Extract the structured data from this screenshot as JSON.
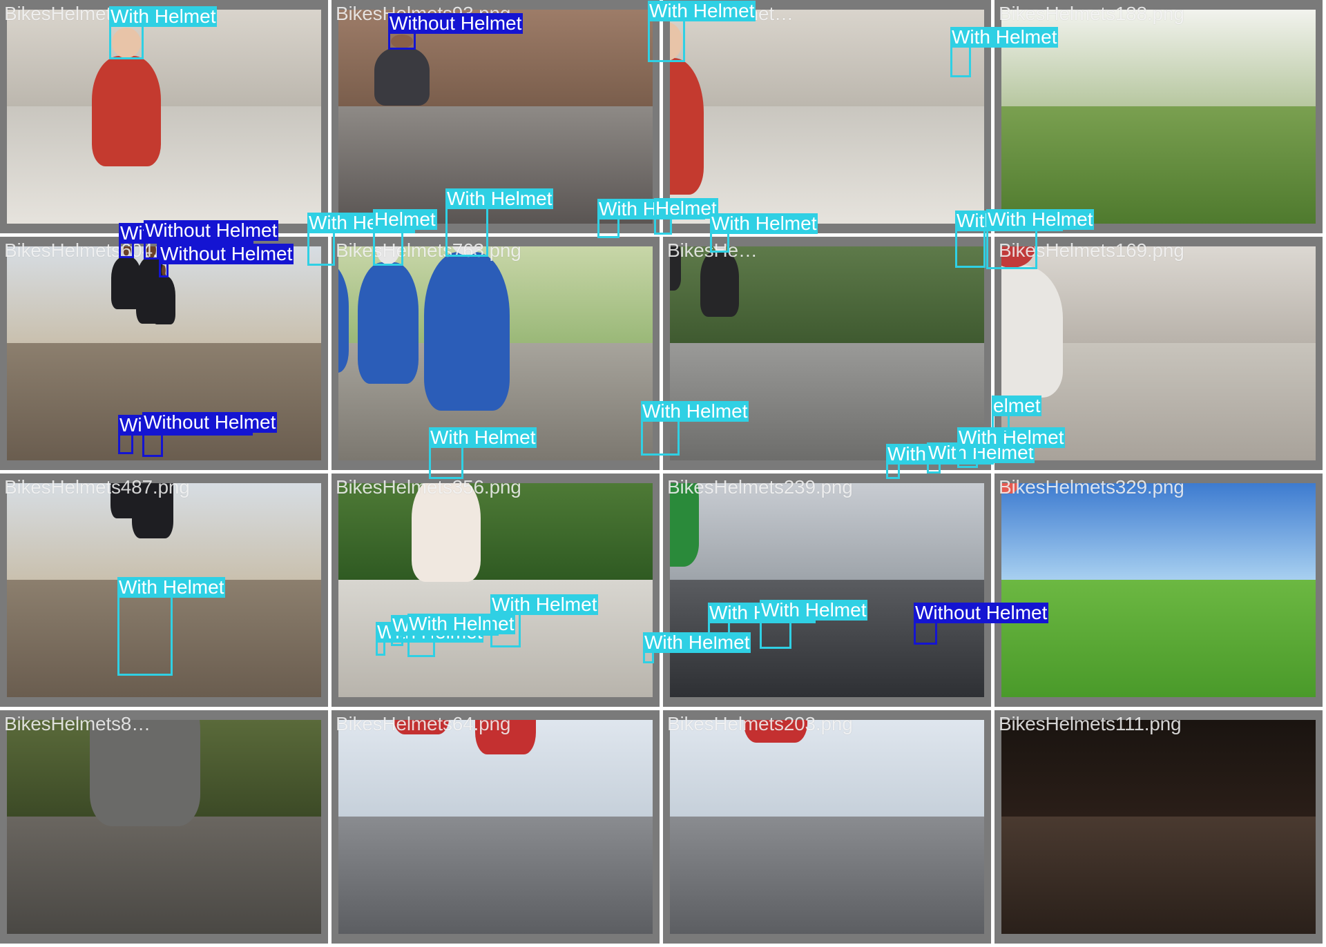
{
  "tiles": [
    {
      "file": "BikesHelmets…png",
      "scene": "street-woman",
      "detections": [
        {
          "label": "With Helmet",
          "cls": "with"
        }
      ]
    },
    {
      "file": "BikesHelmets93.png",
      "scene": "motorbike-fence",
      "detections": [
        {
          "label": "Without Helmet",
          "cls": "without"
        }
      ]
    },
    {
      "file": "BikesHelmet…",
      "scene": "street-woman",
      "detections": [
        {
          "label": "With Helmet",
          "cls": "with"
        }
      ]
    },
    {
      "file": "BikesHelmets188.png",
      "scene": "park-path",
      "detections": [
        {
          "label": "With Helmet",
          "cls": "with"
        }
      ]
    },
    {
      "file": "BikesHelmets604.png",
      "scene": "scooter-road",
      "detections": [
        {
          "label": "Without Helmet",
          "cls": "without"
        },
        {
          "label": "Without Helmet",
          "cls": "without"
        },
        {
          "label": "Without Helmet",
          "cls": "without"
        }
      ]
    },
    {
      "file": "BikesHelmets763.png",
      "scene": "cyclists-race",
      "detections": [
        {
          "label": "With Helmet",
          "cls": "with"
        },
        {
          "label": "Helmet",
          "cls": "with"
        },
        {
          "label": "With Helmet",
          "cls": "with"
        }
      ]
    },
    {
      "file": "BikesHe…",
      "scene": "commuters",
      "detections": [
        {
          "label": "With Helmet",
          "cls": "with"
        },
        {
          "label": "Helmet",
          "cls": "with"
        },
        {
          "label": "With Helmet",
          "cls": "with"
        }
      ]
    },
    {
      "file": "BikesHelmets169.png",
      "scene": "city-scooter",
      "detections": [
        {
          "label": "With Helmet",
          "cls": "with"
        },
        {
          "label": "With Helmet",
          "cls": "with"
        }
      ]
    },
    {
      "file": "BikesHelmets487.png",
      "scene": "scooter-road",
      "detections": [
        {
          "label": "Without Helmet",
          "cls": "without"
        },
        {
          "label": "Without Helmet",
          "cls": "without"
        }
      ]
    },
    {
      "file": "BikesHelmets356.png",
      "scene": "family-path",
      "detections": [
        {
          "label": "With Helmet",
          "cls": "with"
        }
      ]
    },
    {
      "file": "BikesHelmets239.png",
      "scene": "traffic-moto",
      "detections": [
        {
          "label": "With Helmet",
          "cls": "with"
        }
      ]
    },
    {
      "file": "BikesHelmets329.png",
      "scene": "kids-grass",
      "detections": [
        {
          "label": "With Helmet",
          "cls": "with"
        },
        {
          "label": "With Helmet",
          "cls": "with"
        },
        {
          "label": "With Helmet",
          "cls": "with"
        },
        {
          "label": "elmet",
          "cls": "with"
        }
      ]
    },
    {
      "file": "BikesHelmets8…",
      "scene": "forest-rider",
      "detections": [
        {
          "label": "With Helmet",
          "cls": "with"
        }
      ]
    },
    {
      "file": "BikesHelmets64.png",
      "scene": "parade-road",
      "detections": [
        {
          "label": "With Helmet",
          "cls": "with"
        },
        {
          "label": "With Helmet",
          "cls": "with"
        },
        {
          "label": "With Helmet",
          "cls": "with"
        },
        {
          "label": "With Helmet",
          "cls": "with"
        }
      ]
    },
    {
      "file": "BikesHelmets203.png",
      "scene": "parade-road",
      "detections": [
        {
          "label": "With Helmet",
          "cls": "with"
        },
        {
          "label": "With Helmet",
          "cls": "with"
        },
        {
          "label": "With Helmet",
          "cls": "with"
        }
      ]
    },
    {
      "file": "BikesHelmets111.png",
      "scene": "night-scooter",
      "detections": [
        {
          "label": "Without Helmet",
          "cls": "without"
        }
      ]
    }
  ],
  "colors": {
    "with_helmet": "#2fd0e4",
    "without_helmet": "#1414d2",
    "tile_border": "#7a7a7a"
  }
}
